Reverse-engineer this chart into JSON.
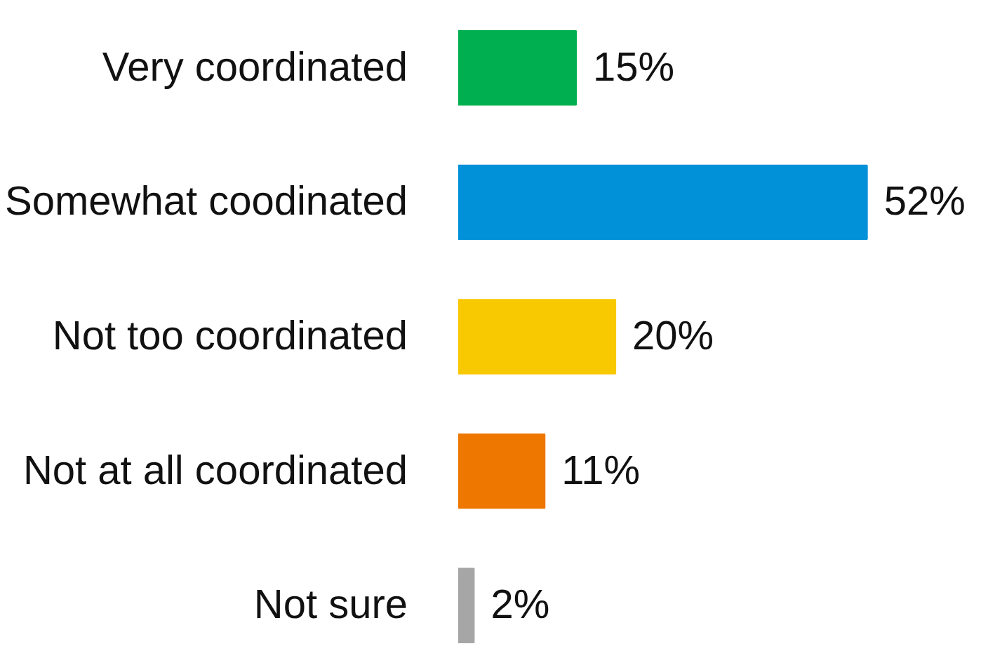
{
  "chart_data": {
    "type": "bar",
    "orientation": "horizontal",
    "categories": [
      "Very coordinated",
      "Somewhat coodinated",
      "Not too coordinated",
      "Not at all coordinated",
      "Not sure"
    ],
    "values": [
      15,
      52,
      20,
      11,
      2
    ],
    "colors": [
      "#00b050",
      "#0091d9",
      "#f8c800",
      "#ee7700",
      "#a6a6a6"
    ],
    "value_labels": [
      "15%",
      "52%",
      "20%",
      "11%",
      "2%"
    ],
    "grid": false
  }
}
